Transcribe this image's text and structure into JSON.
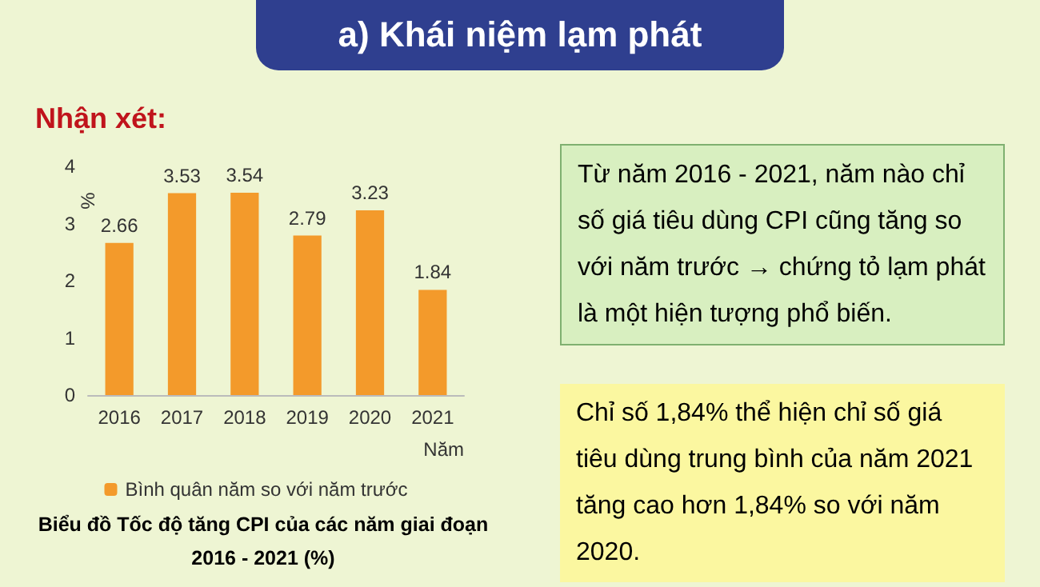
{
  "chart_data": {
    "type": "bar",
    "title": "a) Khái niệm lạm phát",
    "subtitle": "Nhận xét:",
    "ylabel": "%",
    "xlabel": "Năm",
    "categories": [
      "2016",
      "2017",
      "2018",
      "2019",
      "2020",
      "2021"
    ],
    "series": [
      {
        "name": "Bình quân năm so với năm trước",
        "color": "#f39a2b",
        "values": [
          2.66,
          3.53,
          3.54,
          2.79,
          3.23,
          1.84
        ]
      }
    ],
    "ylim": [
      0,
      4
    ],
    "yticks": [
      0,
      1,
      2,
      3,
      4
    ],
    "grid": false,
    "legend": "bottom",
    "data_labels": true,
    "annotations": [
      "Biểu đồ Tốc độ tăng CPI của các năm giai đoạn 2016 - 2021 (%)",
      "Từ năm 2016 - 2021, năm nào chỉ số giá tiêu dùng CPI cũng tăng so với năm trước → chứng tỏ lạm phát là một hiện tượng phổ biến.",
      "Chỉ số 1,84% thể hiện chỉ số giá tiêu dùng trung bình của năm 2021 tăng cao hơn 1,84% so với năm 2020."
    ]
  }
}
